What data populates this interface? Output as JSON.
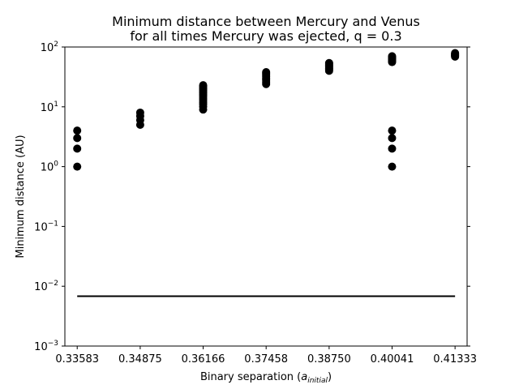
{
  "chart_data": {
    "type": "scatter",
    "title_lines": [
      "Minimum distance between Mercury and Venus",
      "for all times Mercury was ejected, q = 0.3"
    ],
    "xlabel": "Binary separation (",
    "xlabel_var": "a",
    "xlabel_sub": "initial",
    "xlabel_end": ")",
    "ylabel": "Minimum distance (AU)",
    "yscale": "log",
    "ylim": [
      0.001,
      100
    ],
    "xlim": [
      0.3333,
      0.4158
    ],
    "x_ticks": [
      0.33583,
      0.34875,
      0.36166,
      0.37458,
      0.3875,
      0.40041,
      0.41333
    ],
    "x_tick_labels": [
      "0.33583",
      "0.34875",
      "0.36166",
      "0.37458",
      "0.38750",
      "0.40041",
      "0.41333"
    ],
    "y_ticks": [
      {
        "base": "10",
        "exp": "−3",
        "value": 0.001
      },
      {
        "base": "10",
        "exp": "−2",
        "value": 0.01
      },
      {
        "base": "10",
        "exp": "−1",
        "value": 0.1
      },
      {
        "base": "10",
        "exp": "0",
        "value": 1
      },
      {
        "base": "10",
        "exp": "1",
        "value": 10
      },
      {
        "base": "10",
        "exp": "2",
        "value": 100
      }
    ],
    "points": [
      {
        "x": 0.33583,
        "y": [
          1,
          2,
          3,
          4
        ]
      },
      {
        "x": 0.34875,
        "y": [
          5,
          6,
          7,
          8
        ]
      },
      {
        "x": 0.36166,
        "y": [
          9,
          10,
          11,
          12,
          13,
          14,
          15,
          16,
          17,
          18,
          19,
          20,
          21,
          22,
          23
        ]
      },
      {
        "x": 0.37458,
        "y": [
          24,
          26,
          28,
          30,
          32,
          34,
          36,
          38
        ]
      },
      {
        "x": 0.3875,
        "y": [
          40,
          42,
          44,
          46,
          48,
          50,
          52,
          54
        ]
      },
      {
        "x": 0.40041,
        "y": [
          1,
          2,
          3,
          4,
          56,
          58,
          60,
          62,
          64,
          66,
          68,
          70
        ]
      },
      {
        "x": 0.41333,
        "y": [
          69,
          71,
          73,
          75,
          77,
          79
        ]
      }
    ],
    "reference_line": {
      "y": 0.0068,
      "x_start": 0.33583,
      "x_end": 0.41333
    },
    "grid": false,
    "marker_color": "#000000",
    "line_color": "#000000"
  }
}
